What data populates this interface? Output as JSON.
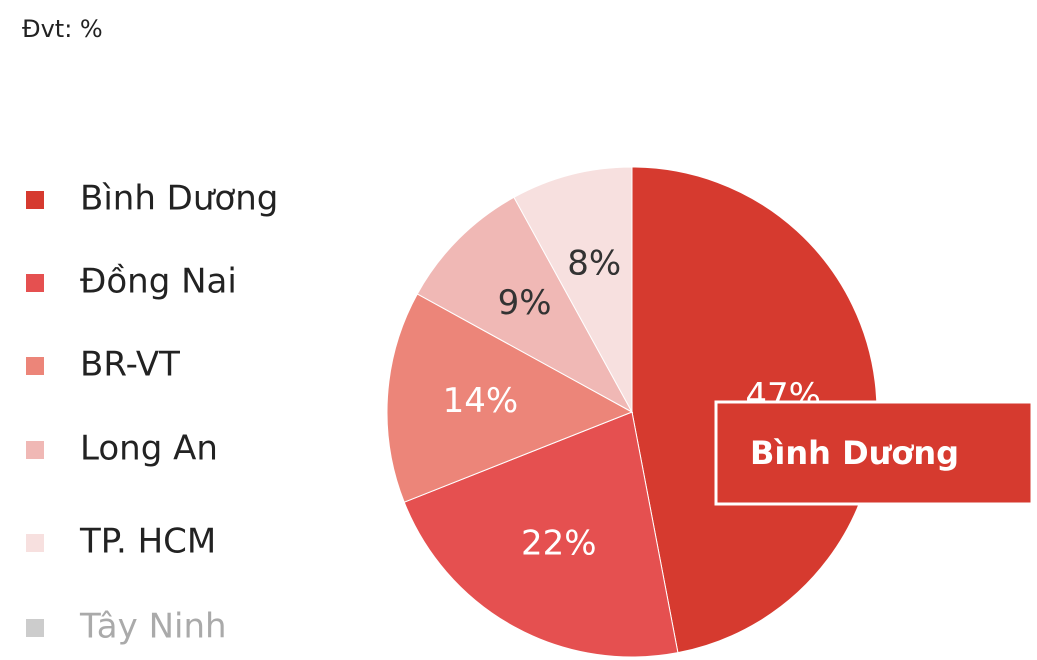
{
  "chart_data": {
    "type": "pie",
    "title": "Đvt: %",
    "categories": [
      "Bình Dương",
      "Đồng Nai",
      "BR-VT",
      "Long An",
      "TP. HCM",
      "Tây Ninh"
    ],
    "values": [
      47,
      22,
      14,
      9,
      8,
      null
    ],
    "value_labels": [
      "47%",
      "22%",
      "14%",
      "9%",
      "8%",
      null
    ],
    "colors": [
      "#d63a2f",
      "#e55050",
      "#ec8579",
      "#f0b8b5",
      "#f7e0df",
      "#cccccc"
    ],
    "hidden": [
      false,
      false,
      false,
      false,
      false,
      true
    ],
    "tooltip": "Bình Dương"
  }
}
